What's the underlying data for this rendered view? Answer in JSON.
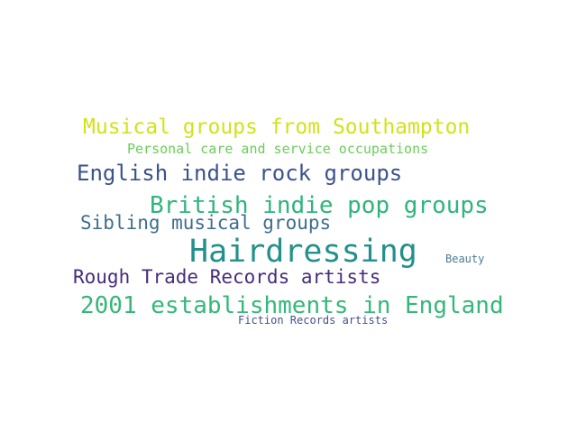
{
  "words": [
    {
      "text": "Musical groups from Southampton",
      "color": "#d2e21b"
    },
    {
      "text": "Personal care and service occupations",
      "color": "#6ccd5a"
    },
    {
      "text": "English indie rock groups",
      "color": "#3b528b"
    },
    {
      "text": "British indie pop groups",
      "color": "#2fb47c"
    },
    {
      "text": "Sibling musical groups",
      "color": "#3e6d8e"
    },
    {
      "text": "Hairdressing",
      "color": "#22908b"
    },
    {
      "text": "Beauty",
      "color": "#4a7a8f"
    },
    {
      "text": "Rough Trade Records artists",
      "color": "#472c7a"
    },
    {
      "text": "2001 establishments in England",
      "color": "#35b779"
    },
    {
      "text": "Fiction Records artists",
      "color": "#46508b"
    }
  ]
}
